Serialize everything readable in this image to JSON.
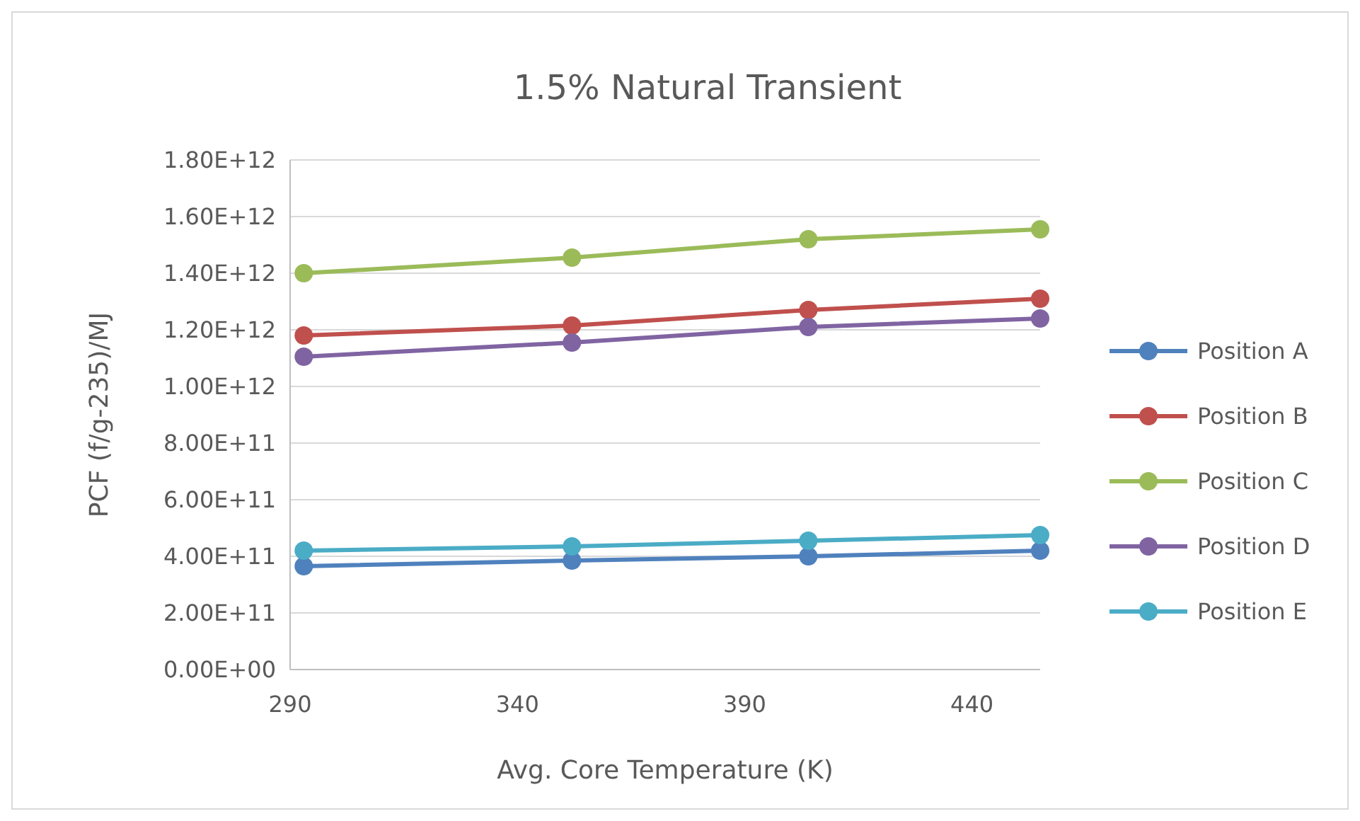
{
  "chart_data": {
    "type": "line",
    "title": "1.5% Natural Transient",
    "xlabel": "Avg. Core Temperature (K)",
    "ylabel": "PCF (f/g-235)/MJ",
    "x": [
      293,
      352,
      404,
      455
    ],
    "series": [
      {
        "name": "Position A",
        "color": "#4f81bd",
        "values": [
          365000000000,
          385000000000,
          400000000000,
          420000000000
        ]
      },
      {
        "name": "Position B",
        "color": "#c0504d",
        "values": [
          1180000000000,
          1215000000000,
          1270000000000,
          1310000000000
        ]
      },
      {
        "name": "Position C",
        "color": "#9bbb59",
        "values": [
          1400000000000,
          1455000000000,
          1520000000000,
          1555000000000
        ]
      },
      {
        "name": "Position D",
        "color": "#8064a2",
        "values": [
          1105000000000,
          1155000000000,
          1210000000000,
          1240000000000
        ]
      },
      {
        "name": "Position E",
        "color": "#4bacc6",
        "values": [
          420000000000,
          435000000000,
          455000000000,
          475000000000
        ]
      }
    ],
    "xlim": [
      290,
      455
    ],
    "xticks": [
      290,
      340,
      390,
      440
    ],
    "ylim": [
      0,
      1800000000000
    ],
    "yticks": [
      {
        "value": 0,
        "label": "0.00E+00"
      },
      {
        "value": 200000000000,
        "label": "2.00E+11"
      },
      {
        "value": 400000000000,
        "label": "4.00E+11"
      },
      {
        "value": 600000000000,
        "label": "6.00E+11"
      },
      {
        "value": 800000000000,
        "label": "8.00E+11"
      },
      {
        "value": 1000000000000,
        "label": "1.00E+12"
      },
      {
        "value": 1200000000000,
        "label": "1.20E+12"
      },
      {
        "value": 1400000000000,
        "label": "1.40E+12"
      },
      {
        "value": 1600000000000,
        "label": "1.60E+12"
      },
      {
        "value": 1800000000000,
        "label": "1.80E+12"
      }
    ],
    "grid": "y",
    "legend": "right",
    "marker": "circle",
    "line_style": "solid"
  }
}
